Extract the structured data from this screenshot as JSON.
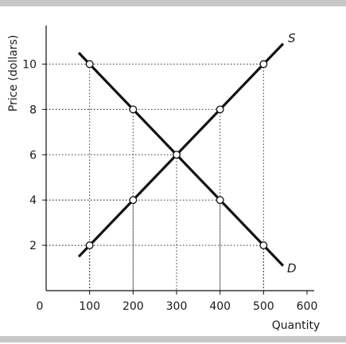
{
  "chart_data": {
    "type": "line",
    "title": "",
    "xlabel": "Quantity",
    "ylabel": "Price (dollars)",
    "xlim": [
      0,
      600
    ],
    "ylim": [
      0,
      12
    ],
    "origin_label": "0",
    "xticks": [
      100,
      200,
      300,
      400,
      500,
      600
    ],
    "xtick_labels": [
      "100",
      "200",
      "300",
      "400",
      "500",
      "600"
    ],
    "yticks": [
      2,
      4,
      6,
      8,
      10
    ],
    "ytick_labels": [
      "2",
      "4",
      "6",
      "8",
      "10"
    ],
    "series": [
      {
        "name": "S",
        "x": [
          100,
          200,
          300,
          400,
          500
        ],
        "y": [
          2,
          4,
          6,
          8,
          10
        ],
        "extend_x": [
          75,
          545
        ]
      },
      {
        "name": "D",
        "x": [
          100,
          200,
          300,
          400,
          500
        ],
        "y": [
          10,
          8,
          6,
          4,
          2
        ],
        "extend_x": [
          75,
          545
        ]
      }
    ],
    "grid": "dotted guides to marked points",
    "line_color": "#111111"
  }
}
